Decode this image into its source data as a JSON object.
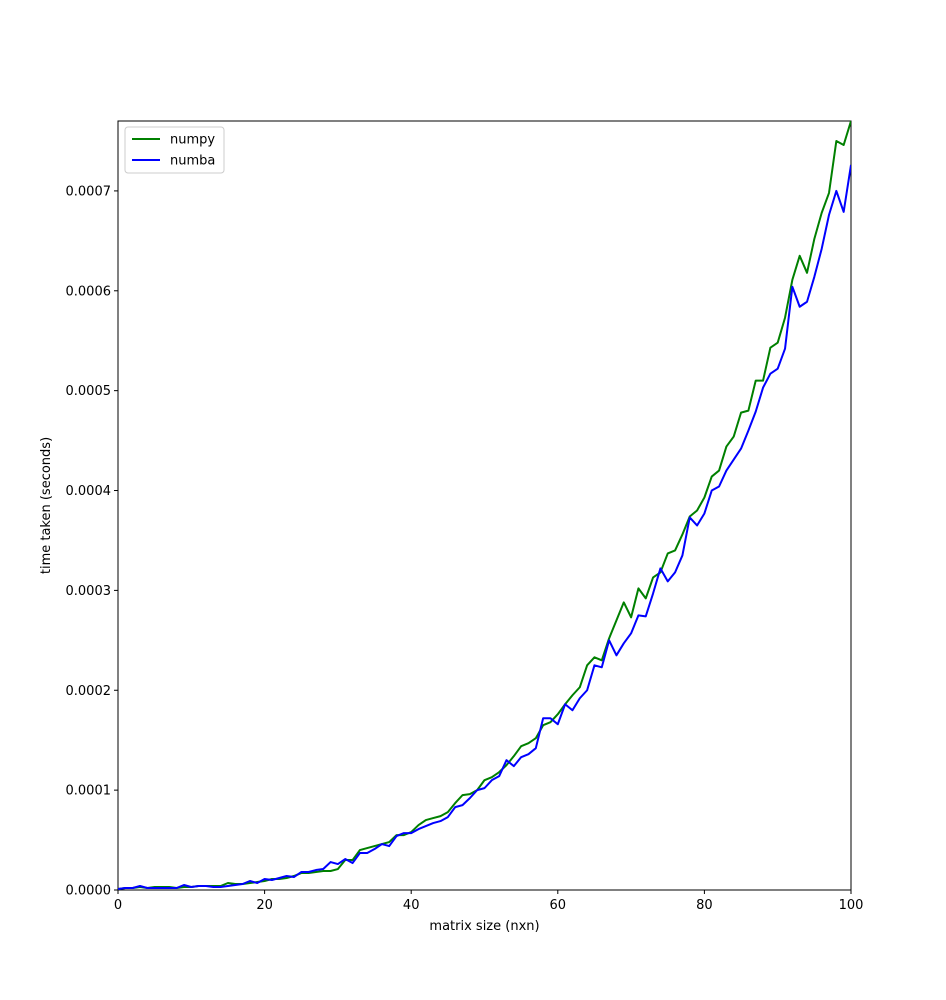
{
  "chart_data": {
    "type": "line",
    "x_label": "matrix size (nxn)",
    "y_label": "time taken (seconds)",
    "x": [
      0,
      1,
      2,
      3,
      4,
      5,
      6,
      7,
      8,
      9,
      10,
      11,
      12,
      13,
      14,
      15,
      16,
      17,
      18,
      19,
      20,
      21,
      22,
      23,
      24,
      25,
      26,
      27,
      28,
      29,
      30,
      31,
      32,
      33,
      34,
      35,
      36,
      37,
      38,
      39,
      40,
      41,
      42,
      43,
      44,
      45,
      46,
      47,
      48,
      49,
      50,
      51,
      52,
      53,
      54,
      55,
      56,
      57,
      58,
      59,
      60,
      61,
      62,
      63,
      64,
      65,
      66,
      67,
      68,
      69,
      70,
      71,
      72,
      73,
      74,
      75,
      76,
      77,
      78,
      79,
      80,
      81,
      82,
      83,
      84,
      85,
      86,
      87,
      88,
      89,
      90,
      91,
      92,
      93,
      94,
      95,
      96,
      97,
      98,
      99,
      100
    ],
    "series": [
      {
        "name": "numpy",
        "color": "#008000",
        "values": [
          1e-06,
          2e-06,
          2e-06,
          3e-06,
          2e-06,
          3e-06,
          3e-06,
          3e-06,
          2e-06,
          3e-06,
          3e-06,
          4e-06,
          4e-06,
          4e-06,
          4e-06,
          7e-06,
          6e-06,
          6e-06,
          7e-06,
          8e-06,
          9e-06,
          1.1e-05,
          1.1e-05,
          1.2e-05,
          1.4e-05,
          1.7e-05,
          1.7e-05,
          1.8e-05,
          1.9e-05,
          1.9e-05,
          2.1e-05,
          3e-05,
          3e-05,
          4e-05,
          4.2e-05,
          4.4e-05,
          4.6e-05,
          4.8e-05,
          5.5e-05,
          5.5e-05,
          5.8e-05,
          6.5e-05,
          7e-05,
          7.2e-05,
          7.4e-05,
          7.8e-05,
          8.7e-05,
          9.5e-05,
          9.6e-05,
          0.0001,
          0.00011,
          0.000113,
          0.000118,
          0.000125,
          0.000134,
          0.000144,
          0.000147,
          0.000152,
          0.000165,
          0.000168,
          0.000176,
          0.000186,
          0.000195,
          0.000203,
          0.000225,
          0.000233,
          0.00023,
          0.000252,
          0.00027,
          0.000288,
          0.000273,
          0.000302,
          0.000292,
          0.000313,
          0.000318,
          0.000337,
          0.00034,
          0.000356,
          0.000374,
          0.00038,
          0.000393,
          0.000414,
          0.00042,
          0.000444,
          0.000454,
          0.000478,
          0.00048,
          0.00051,
          0.00051,
          0.000543,
          0.000548,
          0.000573,
          0.000611,
          0.000635,
          0.000618,
          0.000652,
          0.000678,
          0.000698,
          0.00075,
          0.000746,
          0.00077
        ]
      },
      {
        "name": "numba",
        "color": "#0000ff",
        "values": [
          1e-06,
          2e-06,
          2e-06,
          4e-06,
          2e-06,
          2e-06,
          2e-06,
          2e-06,
          2e-06,
          5e-06,
          3e-06,
          4e-06,
          4e-06,
          3e-06,
          3e-06,
          4e-06,
          5e-06,
          6e-06,
          9e-06,
          7e-06,
          1.1e-05,
          1e-05,
          1.2e-05,
          1.4e-05,
          1.3e-05,
          1.8e-05,
          1.8e-05,
          2e-05,
          2.1e-05,
          2.8e-05,
          2.6e-05,
          3.1e-05,
          2.7e-05,
          3.7e-05,
          3.7e-05,
          4.1e-05,
          4.6e-05,
          4.4e-05,
          5.4e-05,
          5.7e-05,
          5.7e-05,
          6.1e-05,
          6.4e-05,
          6.7e-05,
          6.9e-05,
          7.3e-05,
          8.3e-05,
          8.5e-05,
          9.2e-05,
          0.0001,
          0.000102,
          0.00011,
          0.000114,
          0.00013,
          0.000124,
          0.000133,
          0.000136,
          0.000142,
          0.000172,
          0.000172,
          0.000166,
          0.000186,
          0.00018,
          0.000192,
          0.0002,
          0.000225,
          0.000223,
          0.00025,
          0.000235,
          0.000247,
          0.000257,
          0.000275,
          0.000274,
          0.000297,
          0.000322,
          0.000309,
          0.000318,
          0.000335,
          0.000373,
          0.000365,
          0.000377,
          0.0004,
          0.000404,
          0.00042,
          0.000431,
          0.000442,
          0.00046,
          0.000479,
          0.000503,
          0.000517,
          0.000522,
          0.000542,
          0.000604,
          0.000584,
          0.000589,
          0.000614,
          0.000642,
          0.000676,
          0.0007,
          0.000679,
          0.000726
        ]
      }
    ],
    "xlim": [
      0,
      100
    ],
    "ylim": [
      0,
      0.00077
    ],
    "xticks": [
      0,
      20,
      40,
      60,
      80,
      100
    ],
    "yticks": [
      {
        "value": 0,
        "label": "0.0000"
      },
      {
        "value": 0.0001,
        "label": "0.0001"
      },
      {
        "value": 0.0002,
        "label": "0.0002"
      },
      {
        "value": 0.0003,
        "label": "0.0003"
      },
      {
        "value": 0.0004,
        "label": "0.0004"
      },
      {
        "value": 0.0005,
        "label": "0.0005"
      },
      {
        "value": 0.0006,
        "label": "0.0006"
      },
      {
        "value": 0.0007,
        "label": "0.0007"
      }
    ],
    "legend": "upper-left"
  }
}
